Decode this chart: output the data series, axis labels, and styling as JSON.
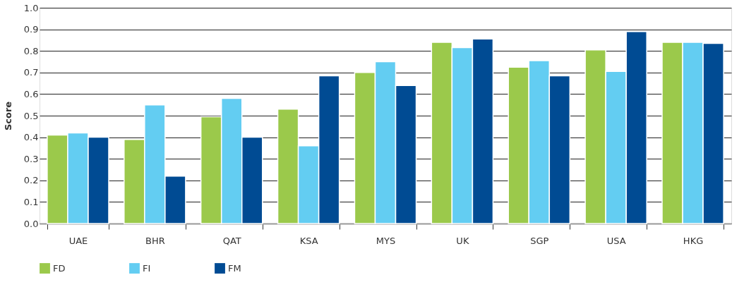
{
  "chart_data": {
    "type": "bar",
    "ylabel": "Score",
    "categories": [
      "UAE",
      "BHR",
      "QAT",
      "KSA",
      "MYS",
      "UK",
      "SGP",
      "USA",
      "HKG"
    ],
    "series": [
      {
        "name": "FD",
        "color": "#9bc94b",
        "values": [
          0.41,
          0.39,
          0.495,
          0.53,
          0.7,
          0.84,
          0.725,
          0.805,
          0.84
        ]
      },
      {
        "name": "FI",
        "color": "#63cdf2",
        "values": [
          0.42,
          0.55,
          0.58,
          0.36,
          0.75,
          0.815,
          0.755,
          0.705,
          0.84
        ]
      },
      {
        "name": "FM",
        "color": "#004b93",
        "values": [
          0.4,
          0.22,
          0.4,
          0.685,
          0.64,
          0.855,
          0.685,
          0.89,
          0.835
        ]
      }
    ],
    "ylim": [
      0,
      1
    ],
    "yticks": [
      {
        "value": 0,
        "label": "0.0"
      },
      {
        "value": 0.1,
        "label": "0.1"
      },
      {
        "value": 0.2,
        "label": "0.2"
      },
      {
        "value": 0.3,
        "label": "0.3"
      },
      {
        "value": 0.4,
        "label": "0.4"
      },
      {
        "value": 0.5,
        "label": "0.5"
      },
      {
        "value": 0.6,
        "label": "0.6"
      },
      {
        "value": 0.7,
        "label": "0.7"
      },
      {
        "value": 0.8,
        "label": "0.8"
      },
      {
        "value": 0.9,
        "label": "0.9"
      },
      {
        "value": 1,
        "label": "1.0"
      }
    ],
    "grid": "y",
    "legend": "bottom left"
  }
}
